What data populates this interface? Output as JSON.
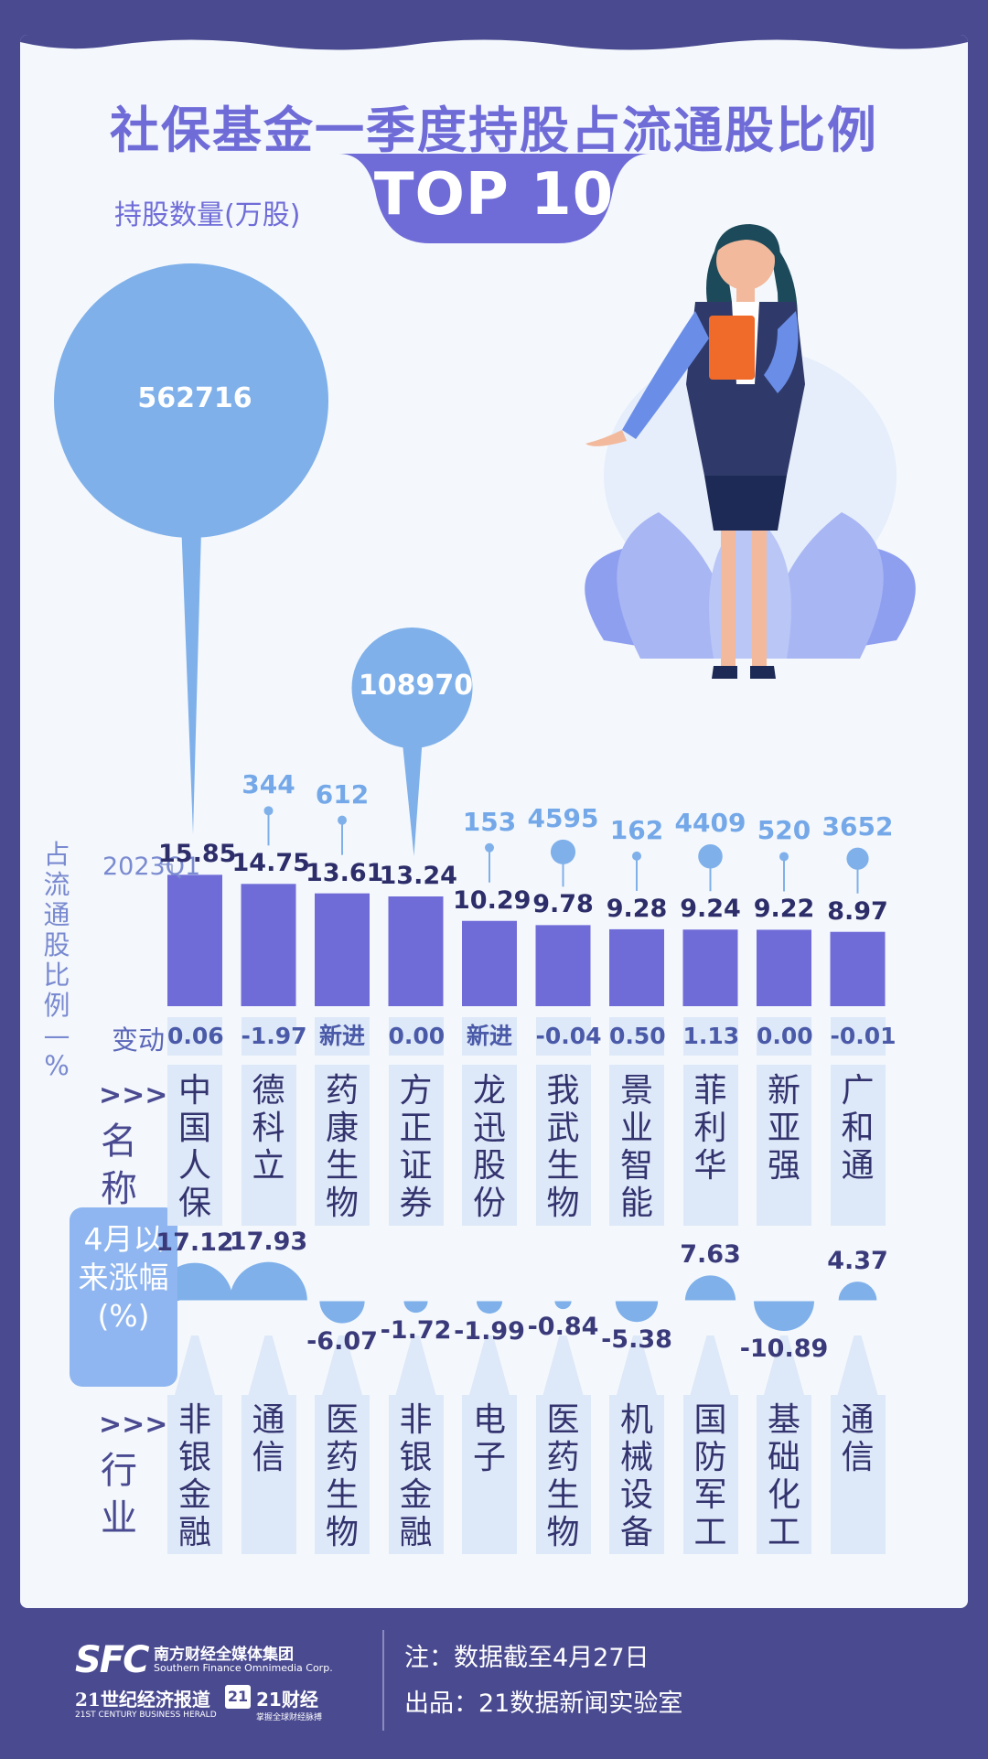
{
  "title": "社保基金一季度持股占流通股比例",
  "badge": "TOP 10",
  "qty_label": "持股数量(万股)",
  "axis_label_vertical": "占流通股比例—%",
  "quarter_label": "2023Q1",
  "change_label": "变动",
  "name_arrows": ">>>",
  "name_label": "名称",
  "gain_label": "4月以来涨幅(%)",
  "industry_arrows": ">>>",
  "industry_label": "行业",
  "notes": {
    "note1": "注：数据截至4月27日",
    "note2": "出品：21数据新闻实验室"
  },
  "logos": {
    "sfc": "SFC",
    "sfc_name": "南方财经全媒体集团",
    "sfc_en": "Southern Finance Omnimedia Corp.",
    "herald_cn": "21世纪经济报道",
    "herald_en": "21ST CENTURY BUSINESS HERALD",
    "c21_badge": "21",
    "c21_text": "21财经",
    "c21_sub": "掌握全球财经脉搏"
  },
  "colors": {
    "background": "#4a4a91",
    "bar": "#6f6cd8",
    "bubble": "#7fb0ea",
    "title": "#6f6cd8"
  },
  "chart_data": {
    "type": "bar",
    "title": "社保基金一季度持股占流通股比例",
    "ylabel": "占流通股比例—%",
    "series_label": "2023Q1",
    "categories": [
      "中国人保",
      "德科立",
      "药康生物",
      "方正证券",
      "龙迅股份",
      "我武生物",
      "景业智能",
      "菲利华",
      "新亚强",
      "广和通"
    ],
    "values": [
      15.85,
      14.75,
      13.61,
      13.24,
      10.29,
      9.78,
      9.28,
      9.24,
      9.22,
      8.97
    ],
    "values_label": [
      "15.85",
      "14.75",
      "13.61",
      "13.24",
      "10.29",
      "9.78",
      "9.28",
      "9.24",
      "9.22",
      "8.97"
    ],
    "change": [
      "0.06",
      "-1.97",
      "新进",
      "0.00",
      "新进",
      "-0.04",
      "0.50",
      "1.13",
      "0.00",
      "-0.01"
    ],
    "holdings": [
      562716,
      344,
      612,
      108970,
      153,
      4595,
      162,
      4409,
      520,
      3652
    ],
    "holdings_label": [
      "562716",
      "344",
      "612",
      "108970",
      "153",
      "4595",
      "162",
      "4409",
      "520",
      "3652"
    ],
    "gain_since_april": [
      17.12,
      17.93,
      -6.07,
      -1.72,
      -1.99,
      -0.84,
      -5.38,
      7.63,
      -10.89,
      4.37
    ],
    "gain_label": [
      "17.12",
      "17.93",
      "-6.07",
      "-1.72",
      "-1.99",
      "-0.84",
      "-5.38",
      "7.63",
      "-10.89",
      "4.37"
    ],
    "industry": [
      "非银金融",
      "通信",
      "医药生物",
      "非银金融",
      "电子",
      "医药生物",
      "机械设备",
      "国防军工",
      "基础化工",
      "通信"
    ]
  }
}
